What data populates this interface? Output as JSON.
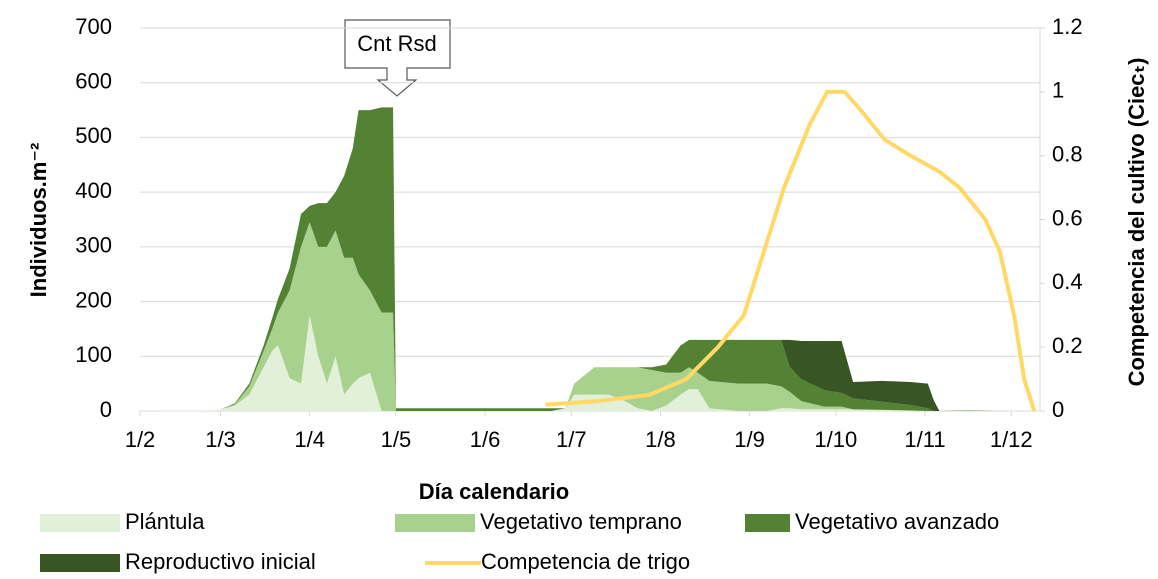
{
  "chart_data": {
    "type": "stacked-area-line",
    "xlabel": "Día calendario",
    "ylabel": "Individuos.m⁻²",
    "y2label": "Competencia del cultivo (Ciecₜ)",
    "annotation": "Cnt Rsd",
    "xlim": [
      32,
      345
    ],
    "xticks": [
      {
        "value": 32,
        "label": "1/2"
      },
      {
        "value": 60,
        "label": "1/3"
      },
      {
        "value": 91,
        "label": "1/4"
      },
      {
        "value": 121,
        "label": "1/5"
      },
      {
        "value": 152,
        "label": "1/6"
      },
      {
        "value": 182,
        "label": "1/7"
      },
      {
        "value": 213,
        "label": "1/8"
      },
      {
        "value": 244,
        "label": "1/9"
      },
      {
        "value": 274,
        "label": "1/10"
      },
      {
        "value": 305,
        "label": "1/11"
      },
      {
        "value": 335,
        "label": "1/12"
      }
    ],
    "ylim": [
      0,
      700
    ],
    "yticks": [
      0,
      100,
      200,
      300,
      400,
      500,
      600,
      700
    ],
    "y2lim": [
      0,
      1.2
    ],
    "y2ticks": [
      0,
      0.2,
      0.4,
      0.6,
      0.8,
      1,
      1.2
    ],
    "grid": true,
    "x": [
      32,
      55,
      60,
      65,
      70,
      75,
      78,
      80,
      84,
      88,
      91,
      94,
      97,
      100,
      103,
      106,
      108,
      112,
      116,
      120,
      121,
      150,
      175,
      180,
      183,
      190,
      195,
      200,
      205,
      210,
      215,
      220,
      223,
      226,
      230,
      240,
      250,
      255,
      258,
      262,
      270,
      276,
      280,
      290,
      300,
      306,
      308,
      310,
      320,
      330
    ],
    "series": [
      {
        "name": "Plántula",
        "color": "#e2efd9",
        "values": [
          0,
          1,
          3,
          10,
          30,
          80,
          110,
          120,
          60,
          50,
          175,
          100,
          50,
          100,
          30,
          50,
          60,
          70,
          0,
          0,
          0,
          0,
          0,
          5,
          30,
          30,
          30,
          20,
          5,
          0,
          10,
          30,
          40,
          40,
          5,
          0,
          0,
          5,
          5,
          3,
          3,
          3,
          3,
          2,
          1,
          0,
          0,
          0,
          0,
          0
        ]
      },
      {
        "name": "Vegetativo temprano",
        "color": "#a9d18e",
        "values": [
          0,
          0,
          0,
          2,
          15,
          30,
          40,
          60,
          160,
          250,
          170,
          200,
          250,
          230,
          250,
          230,
          190,
          150,
          180,
          180,
          0,
          0,
          0,
          0,
          20,
          50,
          50,
          60,
          75,
          75,
          60,
          40,
          40,
          30,
          50,
          50,
          50,
          40,
          30,
          15,
          5,
          5,
          0,
          0,
          0,
          0,
          0,
          0,
          0,
          0
        ]
      },
      {
        "name": "Vegetativo avanzado",
        "color": "#548235",
        "values": [
          0,
          0,
          0,
          2,
          5,
          10,
          20,
          25,
          40,
          60,
          30,
          80,
          80,
          70,
          150,
          200,
          300,
          330,
          375,
          375,
          5,
          5,
          5,
          0,
          0,
          0,
          0,
          0,
          0,
          5,
          15,
          50,
          50,
          60,
          75,
          80,
          80,
          85,
          45,
          40,
          30,
          25,
          20,
          15,
          10,
          5,
          0,
          0,
          1,
          0
        ]
      },
      {
        "name": "Reproductivo inicial",
        "color": "#375623",
        "values": [
          0,
          0,
          0,
          0,
          0,
          0,
          0,
          0,
          0,
          0,
          0,
          0,
          0,
          0,
          0,
          0,
          0,
          0,
          0,
          0,
          0,
          0,
          0,
          0,
          0,
          0,
          0,
          0,
          0,
          0,
          0,
          0,
          0,
          0,
          0,
          0,
          0,
          0,
          50,
          70,
          90,
          95,
          30,
          38,
          42,
          45,
          20,
          0,
          0,
          0
        ]
      },
      {
        "name": "Competencia de trigo",
        "color": "#ffd966",
        "axis": "y2",
        "x": [
          173,
          190,
          209,
          222,
          233,
          242,
          249,
          256,
          265,
          271,
          277,
          282,
          291,
          300,
          310,
          317,
          326,
          331,
          336,
          339.5,
          343
        ],
        "values": [
          0.02,
          0.03,
          0.05,
          0.1,
          0.2,
          0.3,
          0.5,
          0.7,
          0.9,
          1.0,
          1.0,
          0.95,
          0.85,
          0.8,
          0.75,
          0.7,
          0.6,
          0.5,
          0.3,
          0.1,
          0
        ]
      }
    ]
  }
}
